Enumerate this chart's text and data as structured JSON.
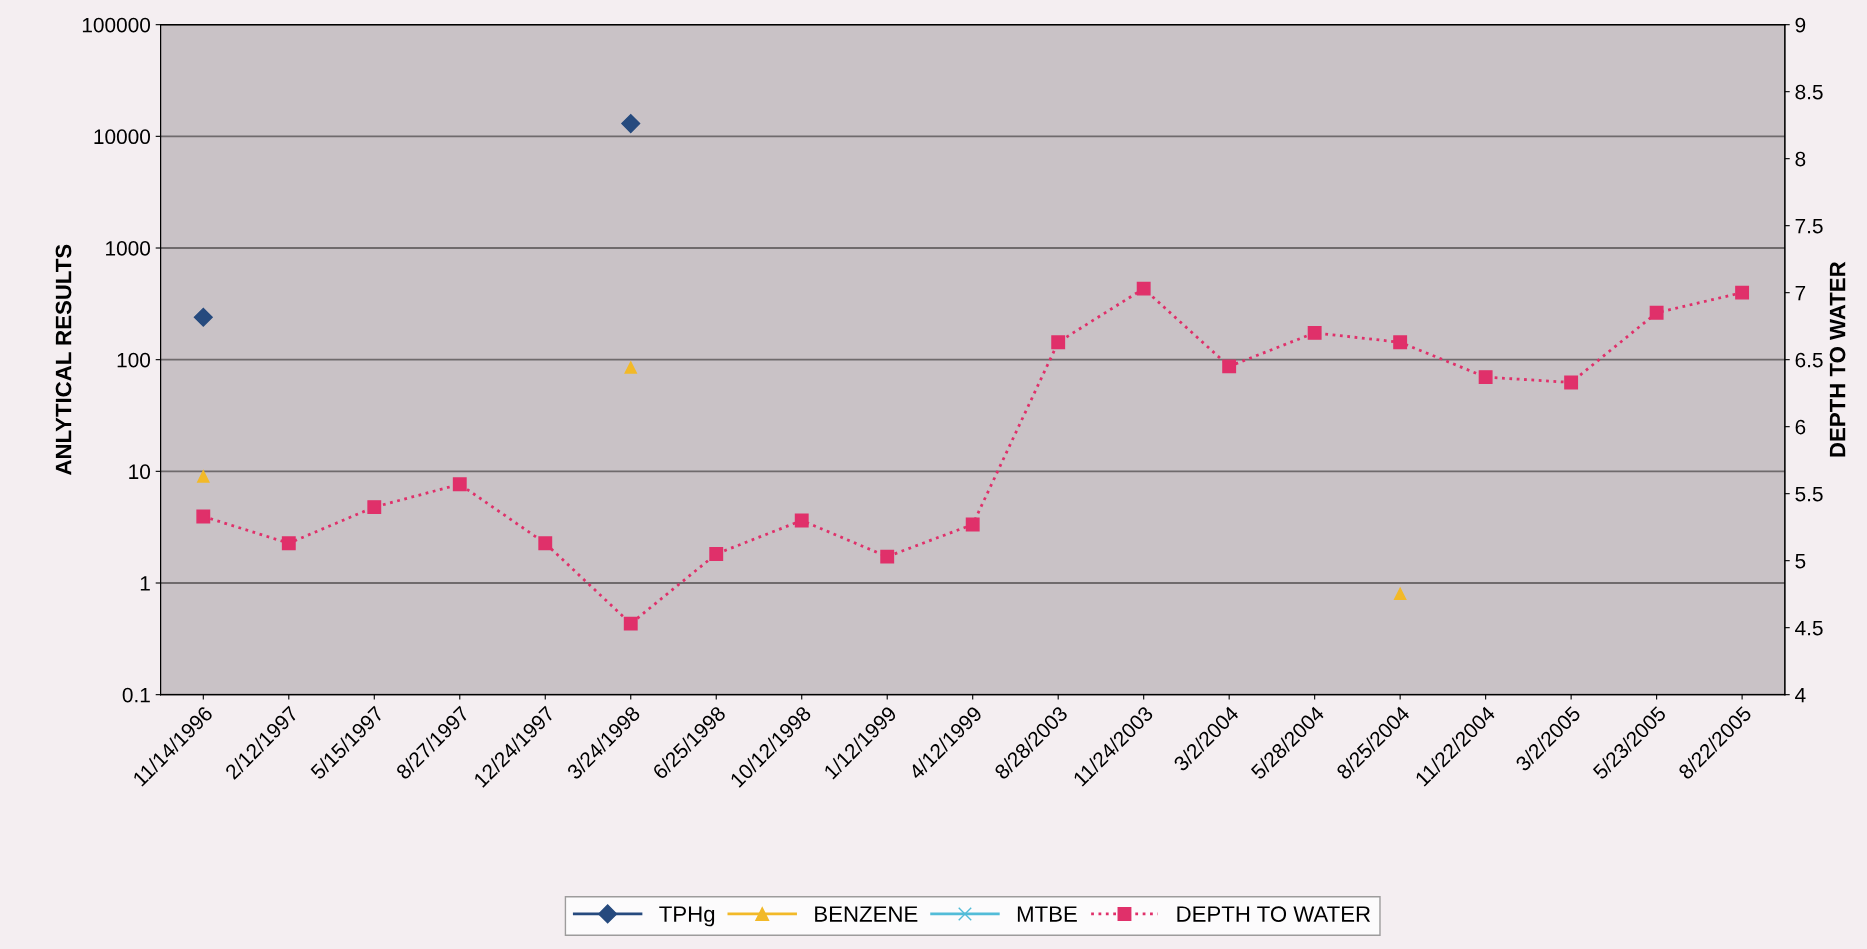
{
  "chart_data": {
    "type": "line",
    "categories": [
      "11/14/1996",
      "2/12/1997",
      "5/15/1997",
      "8/27/1997",
      "12/24/1997",
      "3/24/1998",
      "6/25/1998",
      "10/12/1998",
      "1/12/1999",
      "4/12/1999",
      "8/28/2003",
      "11/24/2003",
      "3/2/2004",
      "5/28/2004",
      "8/25/2004",
      "11/22/2004",
      "3/2/2005",
      "5/23/2005",
      "8/22/2005"
    ],
    "series": [
      {
        "name": "TPHg",
        "type": "scatter",
        "color": "#264a7e",
        "marker": "diamond",
        "line_style": "solid",
        "values": [
          240,
          null,
          null,
          null,
          null,
          13000,
          null,
          null,
          null,
          null,
          null,
          null,
          null,
          null,
          null,
          null,
          null,
          null,
          null
        ]
      },
      {
        "name": "BENZENE",
        "type": "scatter",
        "color": "#f2b928",
        "marker": "triangle",
        "line_style": "solid",
        "values": [
          9,
          null,
          null,
          null,
          null,
          85,
          null,
          null,
          null,
          null,
          null,
          null,
          null,
          null,
          0.8,
          null,
          null,
          null,
          null
        ]
      },
      {
        "name": "MTBE",
        "color": "#52bcd8",
        "marker": "cross",
        "line_style": "solid",
        "values": [
          null,
          null,
          null,
          null,
          null,
          null,
          null,
          null,
          null,
          null,
          null,
          null,
          null,
          null,
          null,
          null,
          null,
          null,
          null
        ]
      },
      {
        "name": "DEPTH TO WATER",
        "color": "#e0306a",
        "marker": "square",
        "line_style": "dotted",
        "axis": "y2",
        "values": [
          5.33,
          5.13,
          5.4,
          5.57,
          5.13,
          4.53,
          5.05,
          5.3,
          5.03,
          5.27,
          6.63,
          7.03,
          6.45,
          6.7,
          6.63,
          6.37,
          6.33,
          6.85,
          7.0
        ]
      }
    ],
    "ylabel": "ANLYTICAL RESULTS",
    "y2label": "DEPTH TO WATER",
    "log": "y",
    "ylim": [
      0.1,
      100000
    ],
    "yticks": [
      {
        "value": 0.1,
        "label": "0.1"
      },
      1,
      10,
      100,
      1000,
      10000,
      100000
    ],
    "y2lim": [
      4,
      9
    ],
    "y2ticks": [
      4,
      4.5,
      5,
      5.5,
      6,
      6.5,
      7,
      7.5,
      8,
      8.5,
      9
    ],
    "grid": "y",
    "legend": "bottom"
  }
}
